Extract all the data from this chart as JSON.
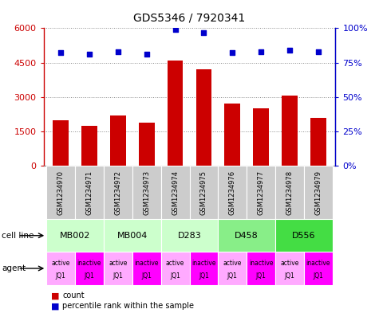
{
  "title": "GDS5346 / 7920341",
  "samples": [
    "GSM1234970",
    "GSM1234971",
    "GSM1234972",
    "GSM1234973",
    "GSM1234974",
    "GSM1234975",
    "GSM1234976",
    "GSM1234977",
    "GSM1234978",
    "GSM1234979"
  ],
  "counts": [
    2000,
    1750,
    2200,
    1900,
    4600,
    4200,
    2700,
    2500,
    3050,
    2100
  ],
  "percentiles": [
    82,
    81,
    83,
    81,
    99,
    97,
    82,
    83,
    84,
    83
  ],
  "cell_lines": [
    {
      "label": "MB002",
      "span": [
        0,
        2
      ],
      "color": "#ccffcc"
    },
    {
      "label": "MB004",
      "span": [
        2,
        4
      ],
      "color": "#ccffcc"
    },
    {
      "label": "D283",
      "span": [
        4,
        6
      ],
      "color": "#ccffcc"
    },
    {
      "label": "D458",
      "span": [
        6,
        8
      ],
      "color": "#88ee88"
    },
    {
      "label": "D556",
      "span": [
        8,
        10
      ],
      "color": "#44dd44"
    }
  ],
  "agents": [
    {
      "label": "active",
      "sublabel": "JQ1",
      "color": "#ffaaff"
    },
    {
      "label": "inactive",
      "sublabel": "JQ1",
      "color": "#ff00ff"
    },
    {
      "label": "active",
      "sublabel": "JQ1",
      "color": "#ffaaff"
    },
    {
      "label": "inactive",
      "sublabel": "JQ1",
      "color": "#ff00ff"
    },
    {
      "label": "active",
      "sublabel": "JQ1",
      "color": "#ffaaff"
    },
    {
      "label": "inactive",
      "sublabel": "JQ1",
      "color": "#ff00ff"
    },
    {
      "label": "active",
      "sublabel": "JQ1",
      "color": "#ffaaff"
    },
    {
      "label": "inactive",
      "sublabel": "JQ1",
      "color": "#ff00ff"
    },
    {
      "label": "active",
      "sublabel": "JQ1",
      "color": "#ffaaff"
    },
    {
      "label": "inactive",
      "sublabel": "JQ1",
      "color": "#ff00ff"
    }
  ],
  "bar_color": "#cc0000",
  "dot_color": "#0000cc",
  "ylim_left": [
    0,
    6000
  ],
  "ylim_right": [
    0,
    100
  ],
  "yticks_left": [
    0,
    1500,
    3000,
    4500,
    6000
  ],
  "ytick_labels_left": [
    "0",
    "1500",
    "3000",
    "4500",
    "6000"
  ],
  "yticks_right": [
    0,
    25,
    50,
    75,
    100
  ],
  "ytick_labels_right": [
    "0%",
    "25%",
    "50%",
    "75%",
    "100%"
  ],
  "sample_bg_color": "#cccccc",
  "background_color": "#ffffff",
  "grid_color": "#888888",
  "label_font_color": "#333333"
}
